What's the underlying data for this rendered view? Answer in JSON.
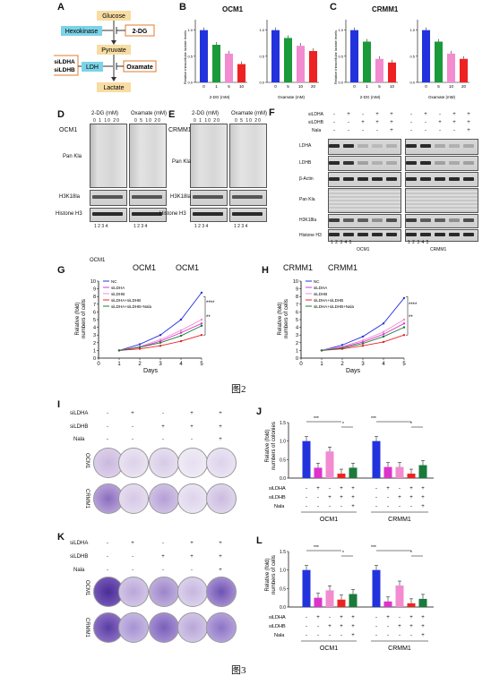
{
  "panel_letters": [
    "A",
    "B",
    "C",
    "D",
    "E",
    "F",
    "G",
    "H",
    "I",
    "J",
    "K",
    "L"
  ],
  "figure_captions": {
    "fig2": "图2",
    "fig3": "图3"
  },
  "panelA": {
    "glucose": "Glucose",
    "hexokinase": "Hexokinase",
    "dg": "2-DG",
    "pyruvate": "Pyruvate",
    "ldh": "LDH",
    "sildha": "siLDHA",
    "sildhb": "siLDHB",
    "oxamate": "Oxamate",
    "lactate": "Lactate"
  },
  "panelB": {
    "title": "OCM1",
    "ylabel": "Relative intracellular lactate levels",
    "xlabel_left": "2-DG (mM)",
    "xlabel_right": "Oxamate (mM)"
  },
  "panelC": {
    "title": "CRMM1",
    "ylabel": "Relative intracellular lactate levels",
    "xlabel_left": "2-DG (mM)",
    "xlabel_right": "Oxamate (mM)"
  },
  "panelD": {
    "cell": "OCM1",
    "dg": "2-DG (mM)",
    "ox": "Oxamate (mM)",
    "dg_conc": "0  1  10  20",
    "ox_conc": "0  5  10  20",
    "pankla": "Pan Kla",
    "h3k18la": "H3K18la",
    "histone": "Histone H3",
    "lanes": "1   2   3   4"
  },
  "panelE": {
    "cell": "CRMM1",
    "dg": "2-DG (mM)",
    "ox": "Oxamate (mM)",
    "dg_conc": "0  1  10  20",
    "ox_conc": "0  5  10  20",
    "pankla": "Pan Kla",
    "h3k18la": "H3K18la",
    "histone": "Histone H3",
    "lanes": "1   2   3   4"
  },
  "panelF": {
    "sildha": "siLDHA",
    "sildhb": "siLDHB",
    "nala": "Nala",
    "ldha": "LDHA",
    "ldhb": "LDHB",
    "actin": "β-Actin",
    "pankla": "Pan Kla",
    "h3k18la": "H3K18la",
    "histone": "Histone H3",
    "ocm1": "OCM1",
    "crmm1": "CRMM1",
    "lanes": "1   2   3   4   5",
    "sildha_row": [
      "-",
      "+",
      "-",
      "+",
      "+"
    ],
    "sildhb_row": [
      "-",
      "-",
      "+",
      "+",
      "+"
    ],
    "nala_row": [
      "-",
      "-",
      "-",
      "-",
      "+"
    ]
  },
  "panelG": {
    "small_title": "OCM1",
    "title1": "OCM1",
    "title2": "OCM1",
    "ylabel1": "Relative (fold)",
    "ylabel2": "numbers of cells",
    "xlabel": "Days",
    "legend": [
      "NC",
      "siLDHA",
      "siLDHB",
      "siLDHA+siLDHB",
      "siLDHA+siLDHB+Nala"
    ],
    "sig1": "****",
    "sig2": "**"
  },
  "panelH": {
    "title1": "CRMM1",
    "title2": "CRMM1",
    "ylabel1": "Relative (fold)",
    "ylabel2": "numbers of cells",
    "xlabel": "Days",
    "legend": [
      "NC",
      "siLDHA",
      "siLDHB",
      "siLDHA+siLDHB",
      "siLDHA+siLDHB+Nala"
    ],
    "sig1": "****",
    "sig2": "**"
  },
  "panelI": {
    "sildha": "siLDHA",
    "sildhb": "siLDHB",
    "nala": "Nala",
    "ocm1": "OCM1",
    "crmm1": "CRMM1",
    "sildha_row": [
      "-",
      "+",
      "-",
      "+",
      "+"
    ],
    "sildhb_row": [
      "-",
      "-",
      "+",
      "+",
      "+"
    ],
    "nala_row": [
      "-",
      "-",
      "-",
      "-",
      "+"
    ]
  },
  "panelJ": {
    "ylabel1": "Relative (fold)",
    "ylabel2": "numbers of colonies",
    "ocm1": "OCM1",
    "crmm1": "CRMM1",
    "sildha": "siLDHA",
    "sildhb": "siLDHB",
    "nala": "Nala",
    "sig_a": "***",
    "sig_b": "*",
    "sig_c": "***",
    "sig_d": "*"
  },
  "panelK": {
    "sildha": "siLDHA",
    "sildhb": "siLDHB",
    "nala": "Nala",
    "ocm1": "OCM1",
    "crmm1": "CRMM1",
    "sildha_row": [
      "-",
      "+",
      "-",
      "+",
      "+"
    ],
    "sildhb_row": [
      "-",
      "-",
      "+",
      "+",
      "+"
    ],
    "nala_row": [
      "-",
      "-",
      "-",
      "-",
      "+"
    ]
  },
  "panelL": {
    "ylabel1": "Relative (fold)",
    "ylabel2": "numbers of cells",
    "ocm1": "OCM1",
    "crmm1": "CRMM1",
    "sildha": "siLDHA",
    "sildhb": "siLDHB",
    "nala": "Nala",
    "sig_a": "***",
    "sig_b": "*",
    "sig_c": "***",
    "sig_d": "*"
  },
  "treat_rows": {
    "sildha": [
      "-",
      "+",
      "-",
      "+",
      "+"
    ],
    "sildhb": [
      "-",
      "-",
      "+",
      "+",
      "+"
    ],
    "nala": [
      "-",
      "-",
      "-",
      "-",
      "+"
    ]
  },
  "colors": {
    "blue": "#2233dd",
    "green": "#1a9a3a",
    "pink": "#ee55cc",
    "red": "#ee2222",
    "lightpink": "#f28bd0",
    "darkgreen": "#1a7a3a",
    "magenta": "#dd33cc"
  },
  "chart_data": [
    {
      "id": "B-left",
      "type": "bar",
      "title": "OCM1",
      "xlabel": "2-DG (mM)",
      "categories": [
        "0",
        "1",
        "5",
        "10"
      ],
      "values": [
        1.0,
        0.72,
        0.55,
        0.35
      ],
      "ylim": [
        0,
        1.2
      ]
    },
    {
      "id": "B-right",
      "type": "bar",
      "xlabel": "Oxamate (mM)",
      "categories": [
        "0",
        "5",
        "10",
        "20"
      ],
      "values": [
        1.0,
        0.85,
        0.7,
        0.6
      ],
      "ylim": [
        0,
        1.2
      ]
    },
    {
      "id": "C-left",
      "type": "bar",
      "title": "CRMM1",
      "xlabel": "2-DG (mM)",
      "categories": [
        "0",
        "1",
        "5",
        "10"
      ],
      "values": [
        1.0,
        0.78,
        0.45,
        0.38
      ],
      "ylim": [
        0,
        1.2
      ]
    },
    {
      "id": "C-right",
      "type": "bar",
      "xlabel": "Oxamate (mM)",
      "categories": [
        "0",
        "5",
        "10",
        "20"
      ],
      "values": [
        1.0,
        0.78,
        0.55,
        0.45
      ],
      "ylim": [
        0,
        1.2
      ]
    },
    {
      "id": "G",
      "type": "line",
      "xlabel": "Days",
      "ylabel": "Relative (fold) numbers of cells",
      "x": [
        0,
        1,
        2,
        3,
        4,
        5
      ],
      "ylim": [
        0,
        10
      ],
      "xlim": [
        0,
        5
      ],
      "series": [
        {
          "name": "NC",
          "values": [
            null,
            1,
            1.8,
            3.0,
            5.0,
            8.5
          ]
        },
        {
          "name": "siLDHA",
          "values": [
            null,
            1,
            1.4,
            2.2,
            3.3,
            4.5
          ]
        },
        {
          "name": "siLDHB",
          "values": [
            null,
            1,
            1.5,
            2.4,
            3.6,
            5.0
          ]
        },
        {
          "name": "siLDHA+siLDHB",
          "values": [
            null,
            1,
            1.2,
            1.6,
            2.2,
            3.0
          ]
        },
        {
          "name": "siLDHA+siLDHB+Nala",
          "values": [
            null,
            1,
            1.4,
            2.0,
            2.9,
            4.2
          ]
        }
      ]
    },
    {
      "id": "H",
      "type": "line",
      "xlabel": "Days",
      "ylabel": "Relative (fold) numbers of cells",
      "x": [
        0,
        1,
        2,
        3,
        4,
        5
      ],
      "ylim": [
        0,
        10
      ],
      "xlim": [
        0,
        5
      ],
      "series": [
        {
          "name": "NC",
          "values": [
            null,
            1,
            1.7,
            2.8,
            4.5,
            7.8
          ]
        },
        {
          "name": "siLDHA",
          "values": [
            null,
            1,
            1.4,
            2.1,
            3.1,
            4.5
          ]
        },
        {
          "name": "siLDHB",
          "values": [
            null,
            1,
            1.5,
            2.3,
            3.4,
            5.0
          ]
        },
        {
          "name": "siLDHA+siLDHB",
          "values": [
            null,
            1,
            1.2,
            1.6,
            2.1,
            3.0
          ]
        },
        {
          "name": "siLDHA+siLDHB+Nala",
          "values": [
            null,
            1,
            1.3,
            1.9,
            2.8,
            4.0
          ]
        }
      ]
    },
    {
      "id": "J",
      "type": "bar",
      "categories": [
        "1",
        "2",
        "3",
        "4",
        "5",
        "6",
        "7",
        "8",
        "9",
        "10"
      ],
      "values": [
        1.0,
        0.28,
        0.72,
        0.12,
        0.28,
        1.0,
        0.3,
        0.3,
        0.12,
        0.35
      ],
      "ylim": [
        0,
        1.5
      ]
    },
    {
      "id": "L",
      "type": "bar",
      "categories": [
        "1",
        "2",
        "3",
        "4",
        "5",
        "6",
        "7",
        "8",
        "9",
        "10"
      ],
      "values": [
        1.0,
        0.25,
        0.45,
        0.2,
        0.35,
        1.0,
        0.15,
        0.58,
        0.1,
        0.22
      ],
      "ylim": [
        0,
        1.5
      ]
    }
  ]
}
